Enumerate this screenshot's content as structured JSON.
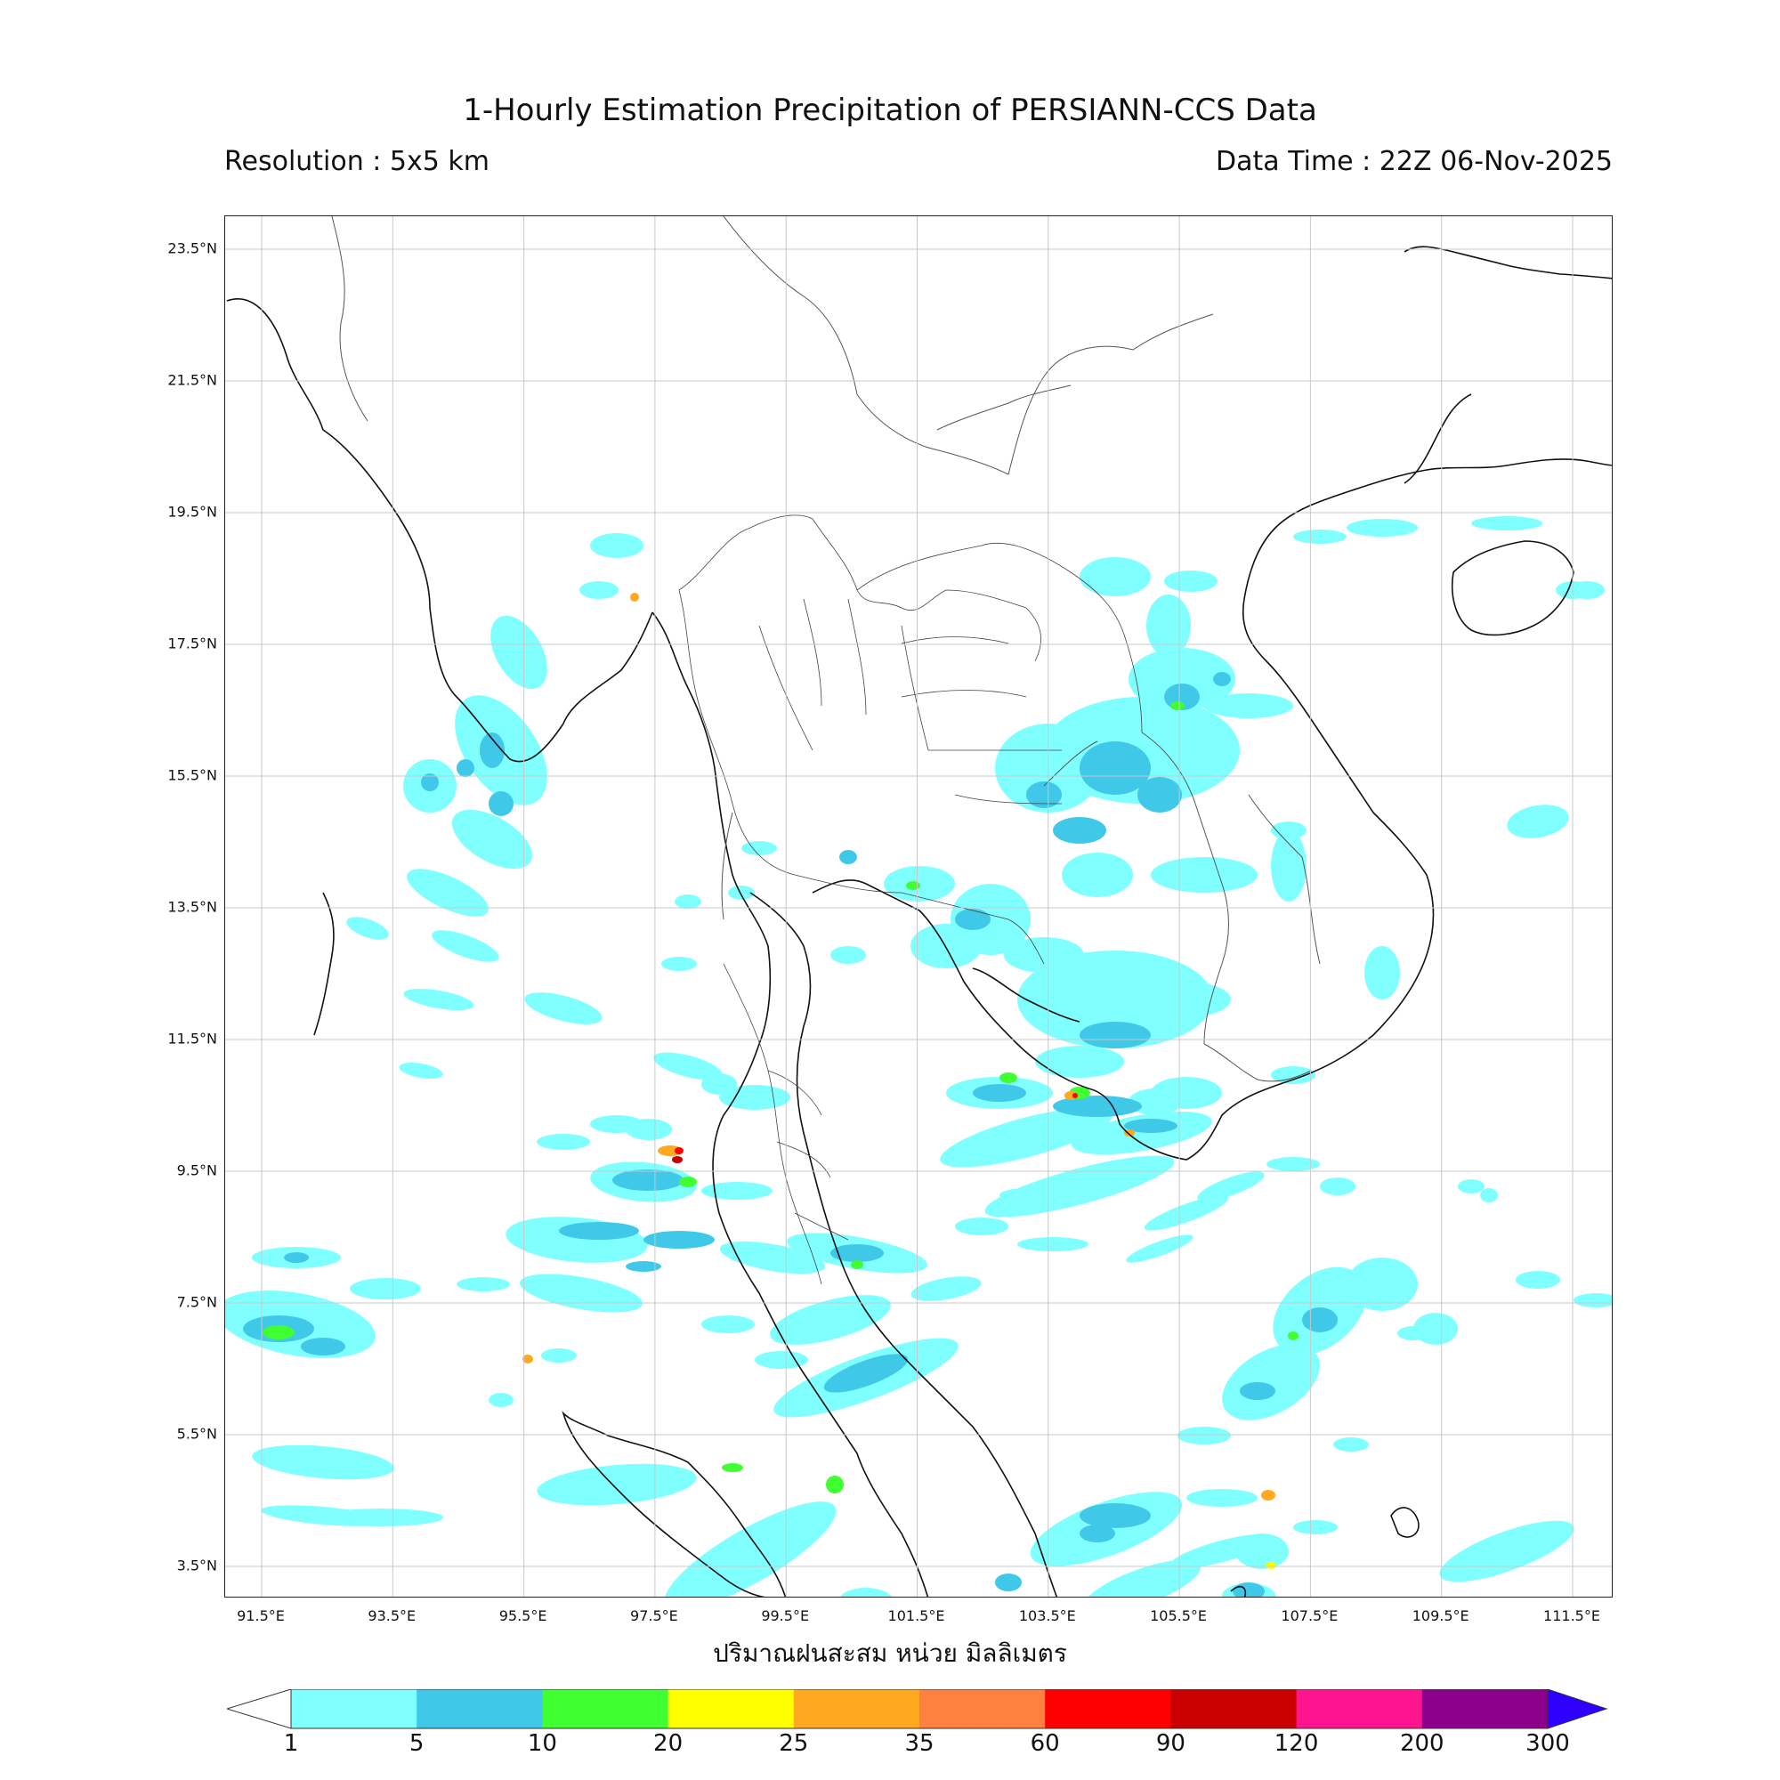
{
  "header": {
    "title": "1-Hourly Estimation Precipitation of PERSIANN-CCS Data",
    "resolution": "Resolution : 5x5 km",
    "data_time": "Data Time : 22Z 06-Nov-2025"
  },
  "map": {
    "lat_labels": [
      "23.5°N",
      "21.5°N",
      "19.5°N",
      "17.5°N",
      "15.5°N",
      "13.5°N",
      "11.5°N",
      "9.5°N",
      "7.5°N",
      "5.5°N",
      "3.5°N"
    ],
    "lon_labels": [
      "91.5°E",
      "93.5°E",
      "95.5°E",
      "97.5°E",
      "99.5°E",
      "101.5°E",
      "103.5°E",
      "105.5°E",
      "107.5°E",
      "109.5°E",
      "111.5°E"
    ],
    "xlabel": "ปริมาณฝนสะสม หน่วย มิลลิเมตร"
  },
  "colorbar": {
    "ticks": [
      "1",
      "5",
      "10",
      "20",
      "25",
      "35",
      "60",
      "90",
      "120",
      "200",
      "300"
    ],
    "colors": [
      "#80ffff",
      "#40c8e8",
      "#40ff30",
      "#ffff00",
      "#ffa820",
      "#ff8040",
      "#ff0000",
      "#c80000",
      "#ff1490",
      "#8c008c",
      "#3000ff"
    ]
  }
}
